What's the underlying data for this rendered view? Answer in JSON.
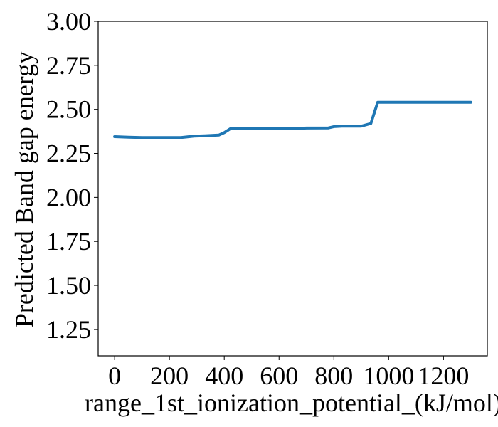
{
  "chart_data": {
    "type": "line",
    "title": "",
    "xlabel": "range_1st_ionization_potential_(kJ/mol)",
    "ylabel": "Predicted Band gap energy",
    "xlim": [
      -60,
      1360
    ],
    "ylim": [
      1.1,
      3.0
    ],
    "x_ticks": [
      0,
      200,
      400,
      600,
      800,
      1000,
      1200
    ],
    "x_tick_labels": [
      "0",
      "200",
      "400",
      "600",
      "800",
      "1000",
      "1200"
    ],
    "y_ticks": [
      1.25,
      1.5,
      1.75,
      2.0,
      2.25,
      2.5,
      2.75,
      3.0
    ],
    "y_tick_labels": [
      "1.25",
      "1.50",
      "1.75",
      "2.00",
      "2.25",
      "2.50",
      "2.75",
      "3.00"
    ],
    "grid": false,
    "series": [
      {
        "color": "#1f77b4",
        "x": [
          0,
          50,
          100,
          150,
          200,
          240,
          260,
          290,
          330,
          380,
          400,
          425,
          500,
          600,
          680,
          700,
          780,
          800,
          830,
          860,
          900,
          935,
          960,
          1000,
          1100,
          1200,
          1300
        ],
        "y": [
          2.345,
          2.342,
          2.34,
          2.34,
          2.34,
          2.34,
          2.343,
          2.348,
          2.35,
          2.354,
          2.368,
          2.393,
          2.393,
          2.393,
          2.393,
          2.394,
          2.395,
          2.402,
          2.405,
          2.405,
          2.405,
          2.42,
          2.54,
          2.54,
          2.54,
          2.54,
          2.54
        ]
      }
    ]
  }
}
